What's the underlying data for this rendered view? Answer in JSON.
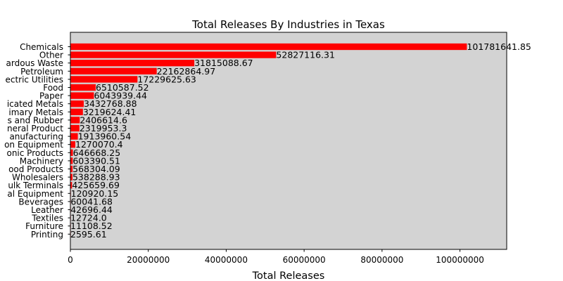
{
  "chart_data": {
    "type": "bar",
    "orientation": "horizontal",
    "title": "Total Releases By Industries in Texas",
    "xlabel": "Total Releases",
    "ylabel": "",
    "xlim": [
      0,
      112000000
    ],
    "xticks": [
      0,
      20000000,
      40000000,
      60000000,
      80000000,
      100000000
    ],
    "xtick_labels": [
      "0",
      "20000000",
      "40000000",
      "60000000",
      "80000000",
      "100000000"
    ],
    "grid": false,
    "plot_background": "#d3d3d3",
    "bar_color": "#ff0000",
    "categories": [
      "Chemicals",
      "Other",
      "ardous Waste",
      "Petroleum",
      "ectric Utilities",
      "Food",
      "Paper",
      "icated Metals",
      "imary Metals",
      "s and Rubber",
      "neral Product",
      "anufacturing",
      "on Equipment",
      "onic Products",
      "Machinery",
      "ood Products",
      "Wholesalers",
      "ulk Terminals",
      "al Equipment",
      "Beverages",
      "Leather",
      "Textiles",
      "Furniture",
      "Printing"
    ],
    "values": [
      101781641.85,
      52827116.31,
      31815088.67,
      22162864.97,
      17229625.63,
      6510587.52,
      6043939.44,
      3432768.88,
      3219624.41,
      2406614.6,
      2319953.3,
      1913960.54,
      1270070.4,
      646668.25,
      603390.51,
      568304.09,
      538288.93,
      425659.69,
      120920.15,
      60041.68,
      42696.44,
      12724.0,
      11108.52,
      2595.61
    ],
    "value_labels": [
      "101781641.85",
      "52827116.31",
      "31815088.67",
      "22162864.97",
      "17229625.63",
      "6510587.52",
      "6043939.44",
      "3432768.88",
      "3219624.41",
      "2406614.6",
      "2319953.3",
      "1913960.54",
      "1270070.4",
      "646668.25",
      "603390.51",
      "568304.09",
      "538288.93",
      "425659.69",
      "120920.15",
      "60041.68",
      "42696.44",
      "12724.0",
      "11108.52",
      "2595.61"
    ]
  }
}
